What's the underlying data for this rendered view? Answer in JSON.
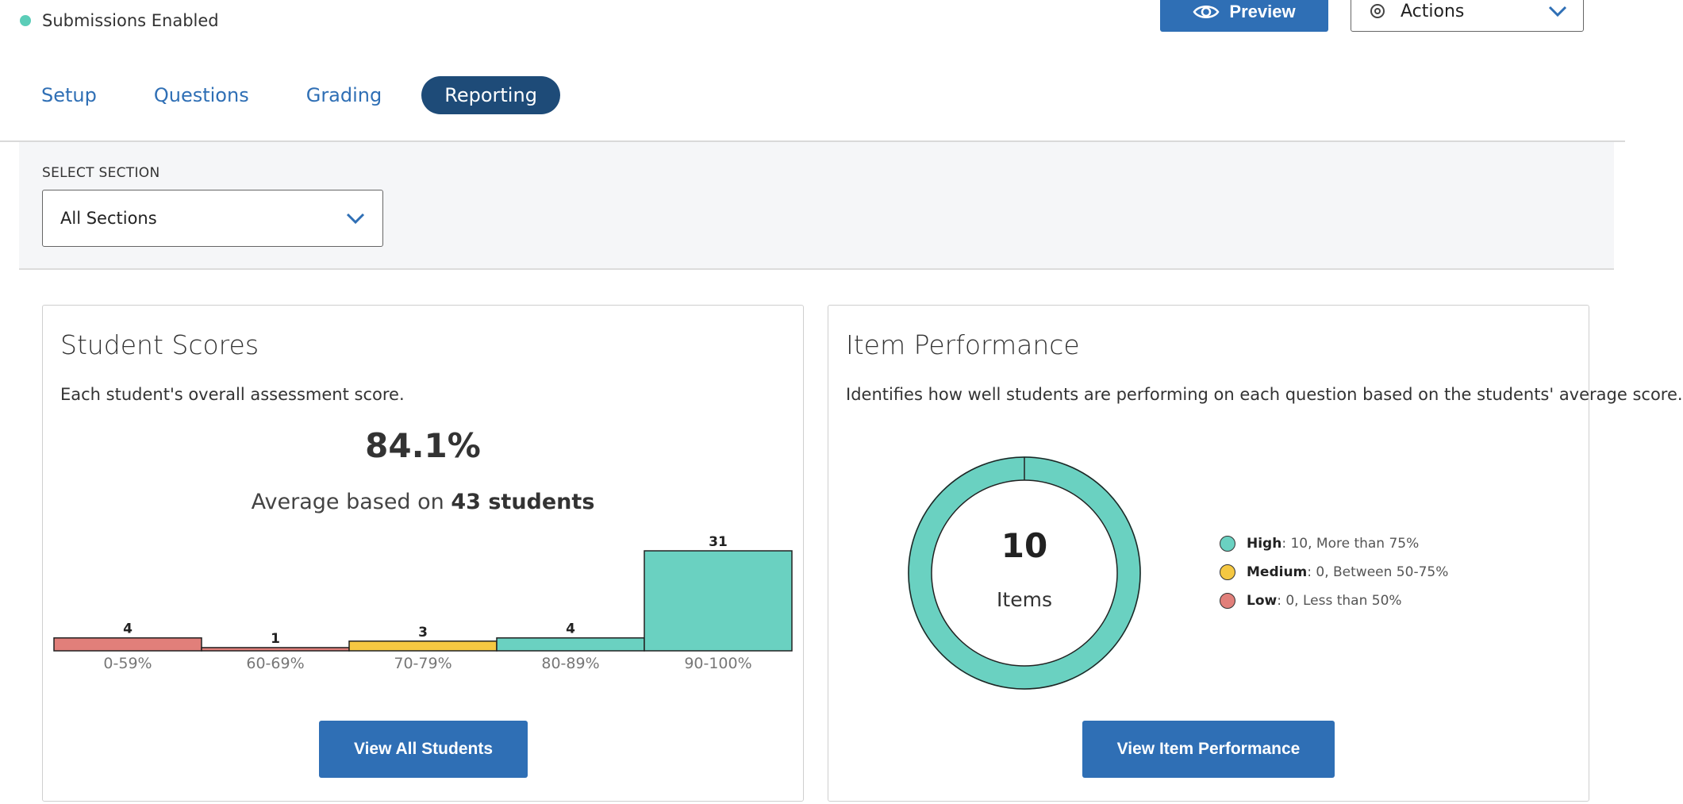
{
  "status": {
    "text": "Submissions Enabled",
    "color": "#5bcdb8"
  },
  "header": {
    "preview_label": "Preview",
    "actions_label": "Actions",
    "brand_color": "#2f6fb5"
  },
  "tabs": [
    {
      "label": "Setup",
      "active": false
    },
    {
      "label": "Questions",
      "active": false
    },
    {
      "label": "Grading",
      "active": false
    },
    {
      "label": "Reporting",
      "active": true
    }
  ],
  "section_select": {
    "label": "SELECT SECTION",
    "value": "All Sections"
  },
  "student_scores": {
    "title": "Student Scores",
    "description": "Each student's overall assessment score.",
    "average": "84.1%",
    "average_prefix": "Average based on ",
    "average_count": "43 students",
    "button_label": "View All Students"
  },
  "item_performance": {
    "title": "Item Performance",
    "description": "Identifies how well students are performing on each question based on the students' average score.",
    "center_value": "10",
    "center_label": "Items",
    "legend": [
      {
        "name": "High",
        "text": ": 10, More than 75%",
        "color": "#6ad1c1"
      },
      {
        "name": "Medium",
        "text": ": 0, Between 50-75%",
        "color": "#f5c842"
      },
      {
        "name": "Low",
        "text": ": 0, Less than 50%",
        "color": "#e17f7a"
      }
    ],
    "button_label": "View Item Performance"
  },
  "chart_data": [
    {
      "type": "bar",
      "categories": [
        "0-59%",
        "60-69%",
        "70-79%",
        "80-89%",
        "90-100%"
      ],
      "values": [
        4,
        1,
        3,
        4,
        31
      ],
      "colors": [
        "#e17f7a",
        "#e17f7a",
        "#f5c842",
        "#6ad1c1",
        "#6ad1c1"
      ],
      "title": "",
      "xlabel": "",
      "ylabel": ""
    },
    {
      "type": "pie",
      "categories": [
        "High",
        "Medium",
        "Low"
      ],
      "values": [
        10,
        0,
        0
      ],
      "colors": [
        "#6ad1c1",
        "#f5c842",
        "#e17f7a"
      ]
    }
  ]
}
